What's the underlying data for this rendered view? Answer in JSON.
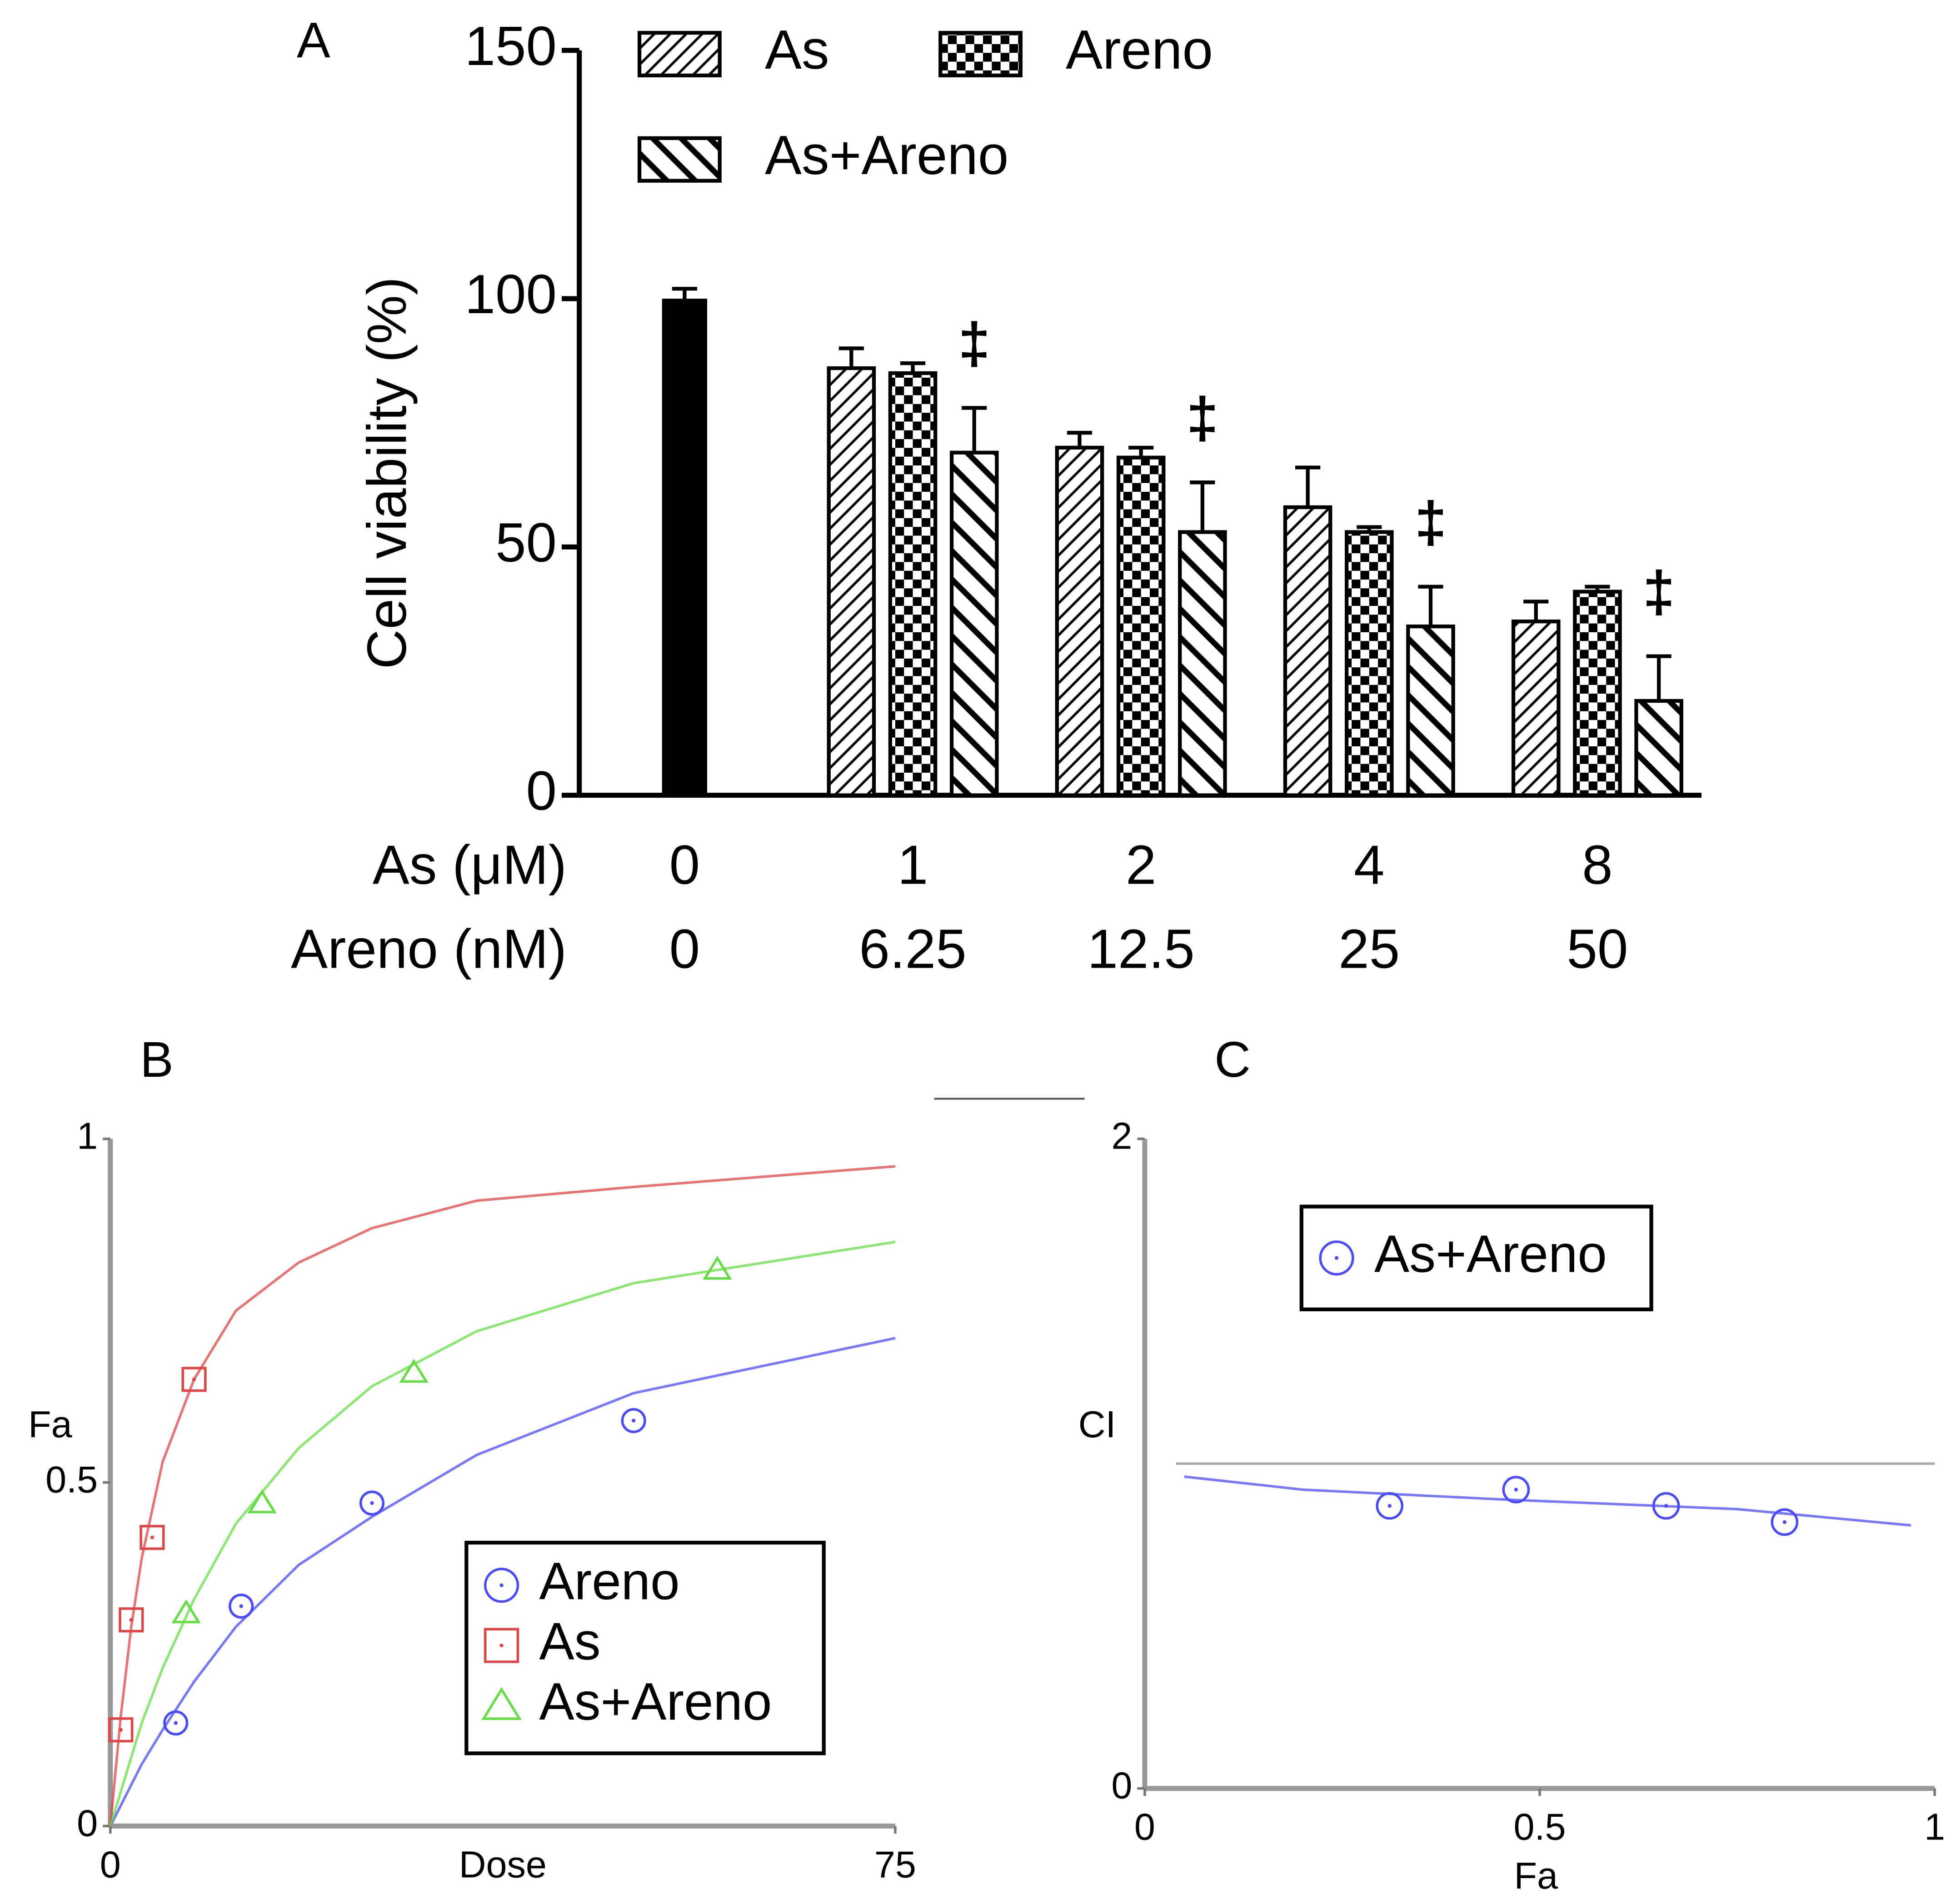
{
  "chart_data": [
    {
      "type": "bar",
      "panel": "A",
      "ylabel": "Cell viability (%)",
      "ylim": [
        0,
        150
      ],
      "yticks": [
        0,
        50,
        100,
        150
      ],
      "category_rows": [
        {
          "label": "As (μM)",
          "categories": [
            "0",
            "1",
            "2",
            "4",
            "8"
          ]
        },
        {
          "label": "Areno (nM)",
          "categories": [
            "0",
            "6.25",
            "12.5",
            "25",
            "50"
          ]
        }
      ],
      "control": {
        "color": "#000000",
        "values": [
          100,
          null,
          null,
          null,
          null
        ],
        "errors": [
          2,
          null,
          null,
          null,
          null
        ]
      },
      "series": [
        {
          "name": "As",
          "color": "#000000",
          "pattern": "hatch",
          "values": [
            null,
            86,
            70,
            58,
            35
          ],
          "errors": [
            null,
            4,
            3,
            8,
            4
          ]
        },
        {
          "name": "Areno",
          "color": "#000000",
          "pattern": "checker",
          "values": [
            null,
            85,
            68,
            53,
            41
          ],
          "errors": [
            null,
            2,
            2,
            1,
            1
          ]
        },
        {
          "name": "As+Areno",
          "color": "#000000",
          "pattern": "backslash",
          "values": [
            null,
            69,
            53,
            34,
            19
          ],
          "errors": [
            null,
            9,
            10,
            8,
            9
          ]
        }
      ],
      "annotations": [
        null,
        "‡",
        "‡",
        "‡",
        "‡"
      ],
      "legend": "upper left"
    },
    {
      "type": "scatter",
      "panel": "B",
      "xlabel": "Dose",
      "ylabel": "Fa",
      "xlim": [
        0,
        75
      ],
      "xticks": [
        0,
        75
      ],
      "ylim": [
        0,
        1
      ],
      "yticks": [
        0,
        0.5,
        1
      ],
      "legend": "lower right",
      "series": [
        {
          "name": "Areno",
          "color": "#4a4aff",
          "marker": "circle",
          "x": [
            6.25,
            12.5,
            25,
            50
          ],
          "values": [
            0.15,
            0.32,
            0.47,
            0.59
          ],
          "fit_x": [
            0,
            1,
            2,
            3,
            5,
            8,
            12,
            18,
            25,
            35,
            50,
            75
          ],
          "fit_y": [
            0,
            0.03,
            0.06,
            0.09,
            0.14,
            0.21,
            0.29,
            0.38,
            0.45,
            0.54,
            0.63,
            0.71
          ]
        },
        {
          "name": "As",
          "color": "#e04444",
          "marker": "square",
          "x": [
            1,
            2,
            4,
            8
          ],
          "values": [
            0.14,
            0.3,
            0.42,
            0.65
          ],
          "fit_x": [
            0,
            1,
            2,
            3,
            5,
            8,
            12,
            18,
            25,
            35,
            50,
            75
          ],
          "fit_y": [
            0,
            0.16,
            0.29,
            0.39,
            0.53,
            0.65,
            0.75,
            0.82,
            0.87,
            0.91,
            0.93,
            0.96
          ]
        },
        {
          "name": "As+Areno",
          "color": "#66dd44",
          "marker": "triangle",
          "x": [
            7.25,
            14.5,
            29,
            58
          ],
          "values": [
            0.31,
            0.47,
            0.66,
            0.81
          ],
          "fit_x": [
            0,
            1,
            2,
            3,
            5,
            8,
            12,
            18,
            25,
            35,
            50,
            75
          ],
          "fit_y": [
            0,
            0.05,
            0.1,
            0.15,
            0.23,
            0.33,
            0.44,
            0.55,
            0.64,
            0.72,
            0.79,
            0.85
          ]
        }
      ]
    },
    {
      "type": "scatter",
      "panel": "C",
      "xlabel": "Fa",
      "ylabel": "CI",
      "xlim": [
        0,
        1
      ],
      "xticks": [
        0,
        0.5,
        1
      ],
      "ylim": [
        0,
        2
      ],
      "yticks": [
        0,
        2
      ],
      "reference_line": 1,
      "legend": "upper center",
      "series": [
        {
          "name": "As+Areno",
          "color": "#4a4aff",
          "marker": "circle",
          "x": [
            0.31,
            0.47,
            0.66,
            0.81
          ],
          "values": [
            0.87,
            0.92,
            0.87,
            0.82
          ],
          "fit_x": [
            0.05,
            0.2,
            0.45,
            0.75,
            0.97
          ],
          "fit_y": [
            0.96,
            0.92,
            0.89,
            0.86,
            0.81
          ]
        }
      ]
    }
  ]
}
